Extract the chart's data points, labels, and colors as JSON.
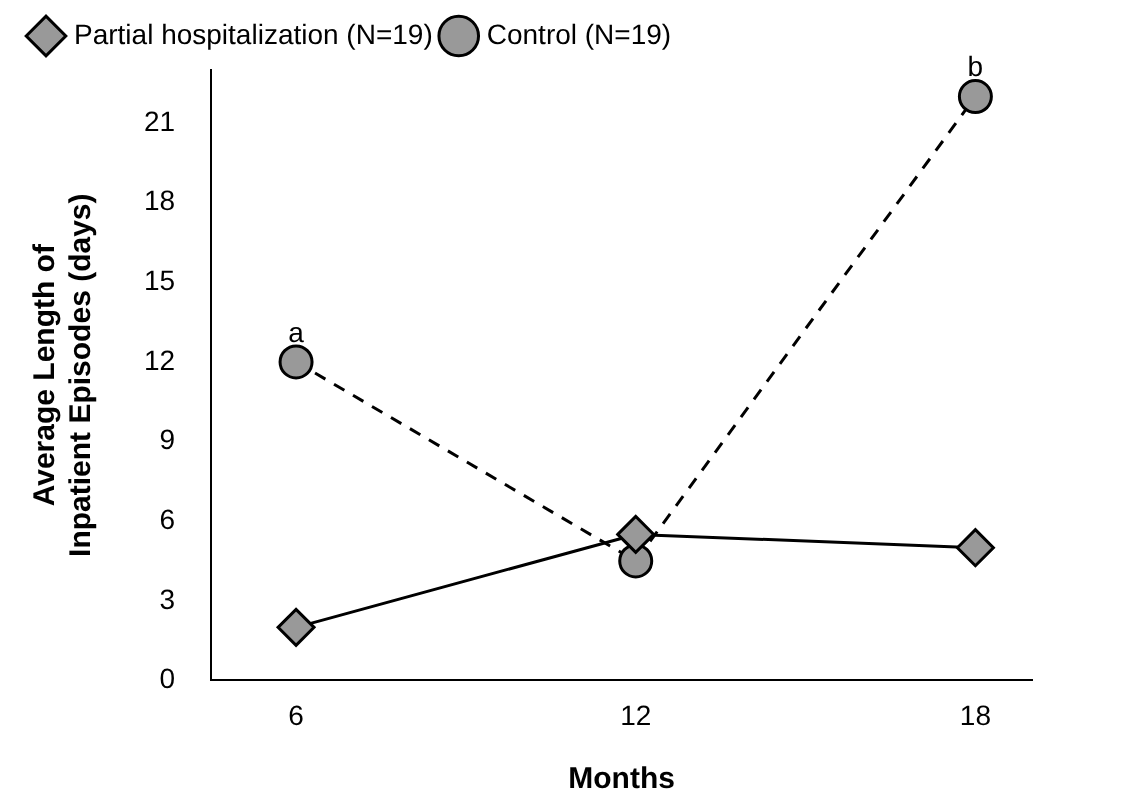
{
  "chart_data": {
    "type": "line",
    "xlabel": "Months",
    "ylabel": "Average Length of\nInpatient Episodes (days)",
    "x": [
      6,
      12,
      18
    ],
    "xlim": [
      4.5,
      19
    ],
    "xticks": [
      6,
      12,
      18
    ],
    "ylim": [
      0,
      23
    ],
    "yticks": [
      0,
      3,
      6,
      9,
      12,
      15,
      18,
      21
    ],
    "series": [
      {
        "name": "Partial hospitalization (N=19)",
        "color": "#000000",
        "values": [
          2,
          5.5,
          5
        ],
        "marker": "diamond",
        "line_style": "solid"
      },
      {
        "name": "Control (N=19)",
        "color": "#000000",
        "values": [
          12,
          4.5,
          22
        ],
        "marker": "circle",
        "line_style": "dashed"
      }
    ],
    "annotations": [
      {
        "text": "a",
        "x": 6,
        "y": 12
      },
      {
        "text": "b",
        "x": 18,
        "y": 22
      }
    ],
    "legend": "top",
    "grid": false
  }
}
